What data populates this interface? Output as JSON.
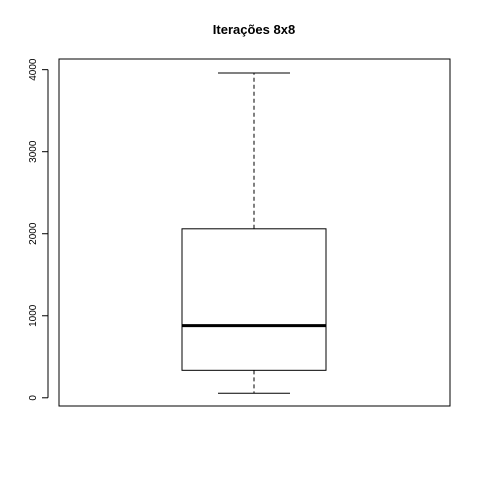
{
  "chart_data": {
    "type": "box",
    "title": "Iterações 8x8",
    "xlabel": "",
    "ylabel": "",
    "ylim": [
      -100,
      4130
    ],
    "yticks": [
      0,
      1000,
      2000,
      3000,
      4000
    ],
    "ytick_labels": [
      "0",
      "1000",
      "2000",
      "3000",
      "4000"
    ],
    "grid": false,
    "box": {
      "whisker_low": 55,
      "q1": 335,
      "median": 880,
      "q3": 2060,
      "whisker_high": 3960
    }
  }
}
